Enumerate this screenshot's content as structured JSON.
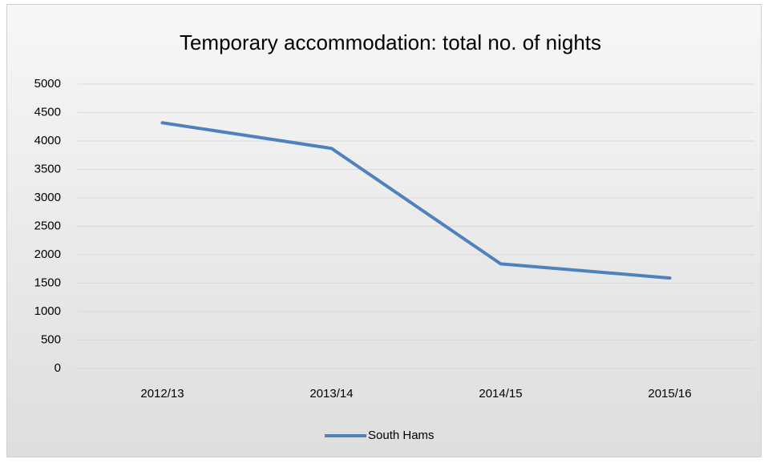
{
  "chart_data": {
    "type": "line",
    "title": "Temporary accommodation: total no. of nights",
    "categories": [
      "2012/13",
      "2013/14",
      "2014/15",
      "2015/16"
    ],
    "series": [
      {
        "name": "South Hams",
        "color": "#4f81bd",
        "values": [
          4320,
          3870,
          1840,
          1590
        ]
      }
    ],
    "ylim": [
      0,
      5000
    ],
    "yticks": [
      0,
      500,
      1000,
      1500,
      2000,
      2500,
      3000,
      3500,
      4000,
      4500,
      5000
    ],
    "grid": true,
    "legend": "bottom"
  }
}
